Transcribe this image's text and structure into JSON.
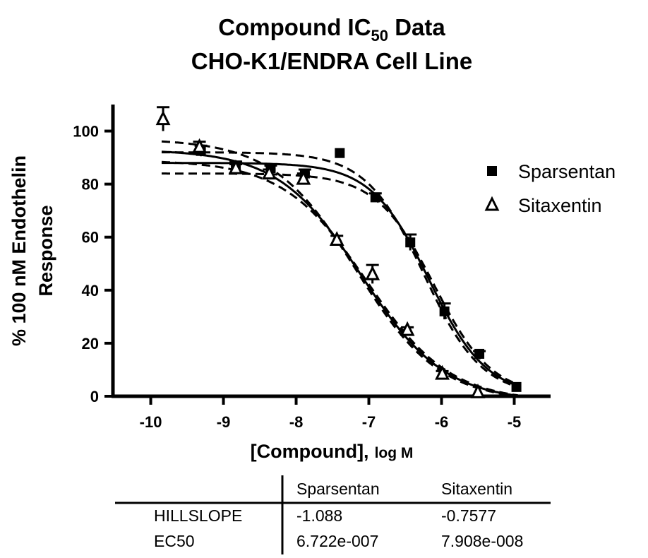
{
  "chart_data": {
    "type": "scatter",
    "title_main": "Compound IC",
    "title_sub": "50",
    "title_end": " Data",
    "subtitle": "CHO-K1/ENDRA Cell Line",
    "xlabel": "[Compound],",
    "xlabel_unit": "log M",
    "ylabel_line1": "% 100 nM Endothelin",
    "ylabel_line2": "Response",
    "xlim": [
      -10.52,
      -4.5
    ],
    "ylim": [
      0,
      110
    ],
    "xticks": [
      -10,
      -9,
      -8,
      -7,
      -6,
      -5
    ],
    "yticks": [
      0,
      20,
      40,
      60,
      80,
      100
    ],
    "legend_position": "right",
    "series": [
      {
        "name": "Sparsentan",
        "marker": "filled-square",
        "x": [
          -9.31,
          -8.83,
          -8.35,
          -7.88,
          -7.4,
          -6.91,
          -6.43,
          -5.96,
          -5.48,
          -4.97
        ],
        "y": [
          92.5,
          87,
          86,
          84,
          91.7,
          75,
          58,
          32,
          16,
          3.5
        ],
        "err": [
          2,
          1.5,
          1,
          1.5,
          0,
          1.5,
          3,
          3,
          1,
          0
        ],
        "fit": {
          "top": 88,
          "bottom": 0,
          "logEC50": -6.1725,
          "hillslope": -1.088
        }
      },
      {
        "name": "Sitaxentin",
        "marker": "open-triangle",
        "x": [
          -9.83,
          -9.33,
          -8.83,
          -8.37,
          -7.9,
          -7.44,
          -6.95,
          -6.47,
          -5.99,
          -5.5
        ],
        "y": [
          104.5,
          94,
          86,
          84,
          82,
          59,
          46,
          25,
          8.5,
          1.5
        ],
        "err": [
          4.5,
          2,
          1.5,
          1.5,
          2,
          1.5,
          3.5,
          1,
          1,
          0
        ],
        "fit": {
          "top": 93,
          "bottom": -2,
          "logEC50": -7.102,
          "hillslope": -0.7577
        }
      }
    ],
    "results_table": {
      "columns": [
        "",
        "Sparsentan",
        "Sitaxentin"
      ],
      "rows": [
        [
          "HILLSLOPE",
          "-1.088",
          "-0.7577"
        ],
        [
          "EC50",
          "6.722e-007",
          "7.908e-008"
        ]
      ]
    }
  }
}
